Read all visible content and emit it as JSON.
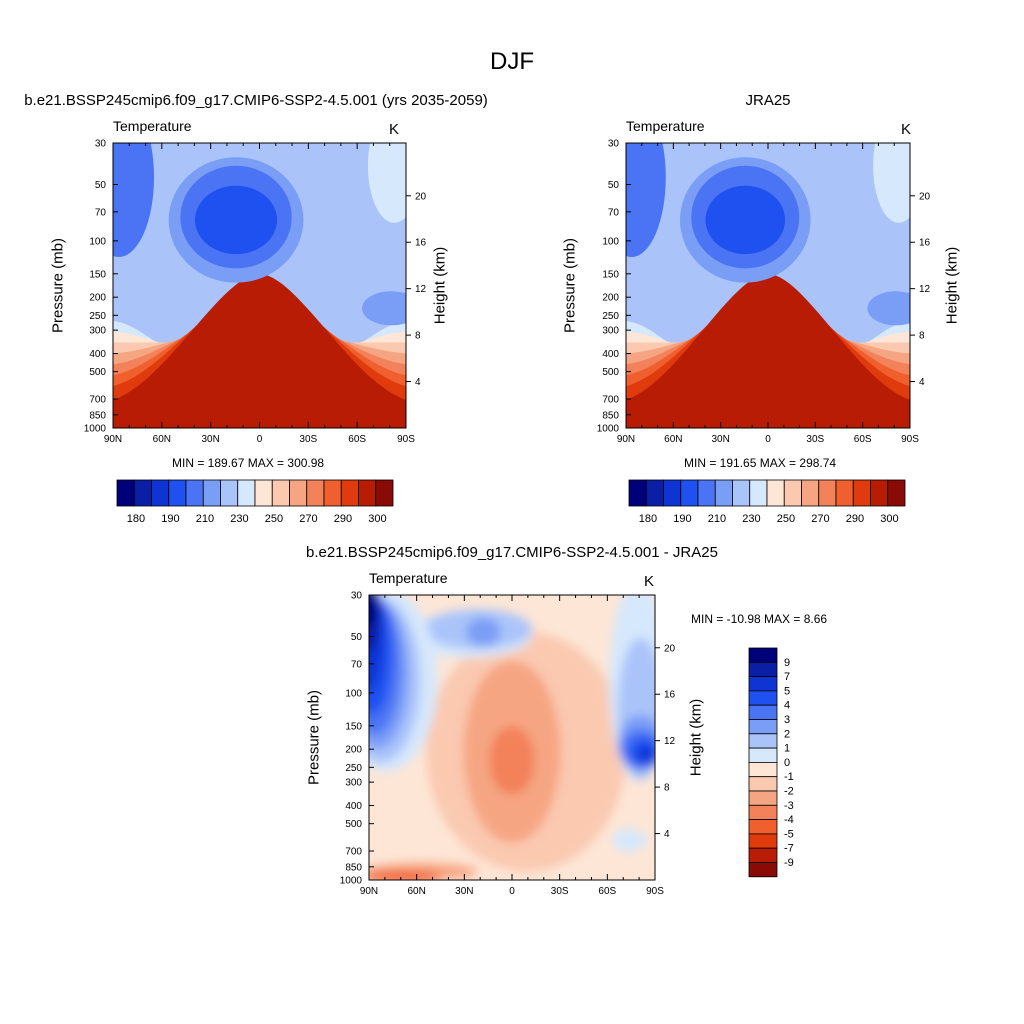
{
  "page_title": "DJF",
  "colors": {
    "ramp": [
      "#00007a",
      "#0a1fa6",
      "#0e35d4",
      "#1f50f0",
      "#4a74f4",
      "#7a9df6",
      "#aac4fa",
      "#d6e8fc",
      "#fde6d6",
      "#fac9b0",
      "#f6a582",
      "#f3815a",
      "#f0602f",
      "#e03b0c",
      "#b81c05",
      "#8a0b06"
    ]
  },
  "abs_levels": [
    "180",
    "190",
    "210",
    "230",
    "250",
    "270",
    "290",
    "300"
  ],
  "diff_levels": [
    "9",
    "7",
    "5",
    "4",
    "3",
    "2",
    "1",
    "0",
    "-1",
    "-2",
    "-3",
    "-4",
    "-5",
    "-7",
    "-9"
  ],
  "panels": {
    "model": {
      "title": "b.e21.BSSP245cmip6.f09_g17.CMIP6-SSP2-4.5.001 (yrs 2035-2059)",
      "variable": "Temperature",
      "units": "K",
      "minmax": "MIN = 189.67  MAX = 300.98"
    },
    "obs": {
      "title": "JRA25",
      "variable": "Temperature",
      "units": "K",
      "minmax": "MIN = 191.65  MAX = 298.74"
    },
    "diff": {
      "title": "b.e21.BSSP245cmip6.f09_g17.CMIP6-SSP2-4.5.001 - JRA25",
      "variable": "Temperature",
      "units": "K",
      "minmax": "MIN = -10.98  MAX =   8.66"
    }
  },
  "axes": {
    "x_ticks": [
      "90N",
      "60N",
      "30N",
      "0",
      "30S",
      "60S",
      "90S"
    ],
    "pressure_ticks": [
      "30",
      "50",
      "70",
      "100",
      "150",
      "200",
      "250",
      "300",
      "400",
      "500",
      "700",
      "850",
      "1000"
    ],
    "height_ticks": [
      "20",
      "16",
      "12",
      "8",
      "4"
    ],
    "ylabel_left": "Pressure (mb)",
    "ylabel_right": "Height (km)"
  },
  "chart_data": [
    {
      "type": "heatmap",
      "title": "b.e21.BSSP245cmip6.f09_g17.CMIP6-SSP2-4.5.001 (yrs 2035-2059)",
      "xlabel": "",
      "ylabel": "Pressure (mb)",
      "x": [
        "90N",
        "60N",
        "30N",
        "0",
        "30S",
        "60S",
        "90S"
      ],
      "y": [
        1000,
        850,
        700,
        500,
        400,
        300,
        250,
        200,
        150,
        100,
        70,
        50,
        30
      ],
      "scale": "log-pressure",
      "min": 189.67,
      "max": 300.98,
      "legend": {
        "position": "bottom",
        "levels": [
          180,
          190,
          210,
          230,
          250,
          270,
          290,
          300
        ]
      }
    },
    {
      "type": "heatmap",
      "title": "JRA25",
      "xlabel": "",
      "ylabel": "Pressure (mb)",
      "x": [
        "90N",
        "60N",
        "30N",
        "0",
        "30S",
        "60S",
        "90S"
      ],
      "y": [
        1000,
        850,
        700,
        500,
        400,
        300,
        250,
        200,
        150,
        100,
        70,
        50,
        30
      ],
      "scale": "log-pressure",
      "min": 191.65,
      "max": 298.74,
      "legend": {
        "position": "bottom",
        "levels": [
          180,
          190,
          210,
          230,
          250,
          270,
          290,
          300
        ]
      }
    },
    {
      "type": "heatmap",
      "title": "b.e21.BSSP245cmip6.f09_g17.CMIP6-SSP2-4.5.001 - JRA25",
      "xlabel": "",
      "ylabel": "Pressure (mb)",
      "x": [
        "90N",
        "60N",
        "30N",
        "0",
        "30S",
        "60S",
        "90S"
      ],
      "y": [
        1000,
        850,
        700,
        500,
        400,
        300,
        250,
        200,
        150,
        100,
        70,
        50,
        30
      ],
      "scale": "log-pressure",
      "min": -10.98,
      "max": 8.66,
      "legend": {
        "position": "right",
        "levels": [
          9,
          7,
          5,
          4,
          3,
          2,
          1,
          0,
          -1,
          -2,
          -3,
          -4,
          -5,
          -7,
          -9
        ]
      }
    }
  ]
}
